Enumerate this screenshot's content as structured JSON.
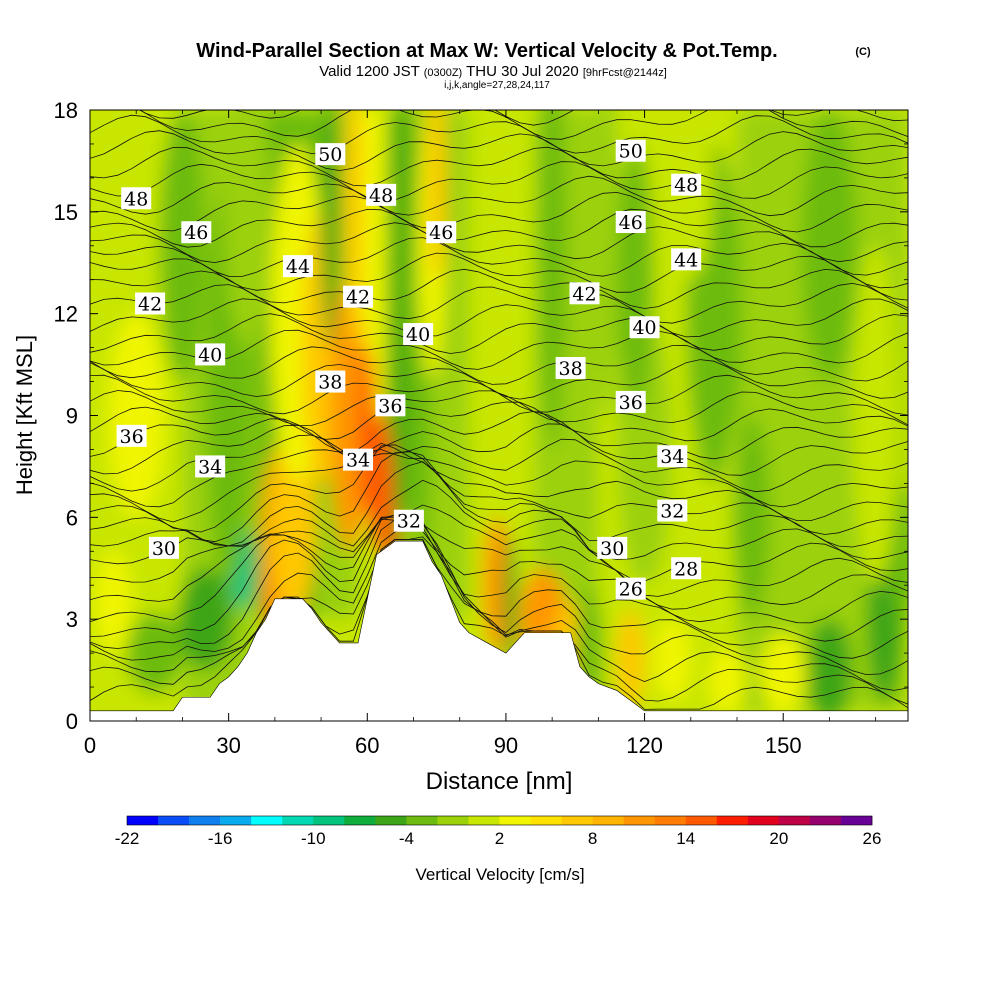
{
  "chart_data": {
    "type": "heatmap",
    "title": "Wind-Parallel Section at Max W: Vertical Velocity & Pot.Temp.",
    "title_mark": "(C)",
    "subtitle": {
      "valid": "Valid 1200 JST",
      "utc": "(0300Z)",
      "date": "THU 30 Jul 2020",
      "forecast": "[9hrFcst@2144z]"
    },
    "grid_indices": "i,j,k,angle=27,28,24,117",
    "xlabel": "Distance [nm]",
    "ylabel": "Height [Kft MSL]",
    "xlim": [
      0,
      177
    ],
    "ylim": [
      0,
      18
    ],
    "x_ticks": [
      "0",
      "30",
      "60",
      "90",
      "120",
      "150"
    ],
    "y_ticks": [
      "0",
      "3",
      "6",
      "9",
      "12",
      "15",
      "18"
    ],
    "colorbar": {
      "label": "Vertical Velocity [cm/s]",
      "tick_labels": [
        "-22",
        "-16",
        "-10",
        "-4",
        "2",
        "8",
        "14",
        "20",
        "26"
      ],
      "range": [
        -22,
        26
      ],
      "colors": [
        "#0000ff",
        "#0a4cf7",
        "#0f7ff0",
        "#0aaaee",
        "#00ffff",
        "#00d8b3",
        "#00c47d",
        "#0fae3c",
        "#3da518",
        "#6cbb0e",
        "#9bd108",
        "#c8e600",
        "#f0f500",
        "#ffe100",
        "#ffc800",
        "#ffb400",
        "#ff9600",
        "#ff7d00",
        "#ff5a00",
        "#ff1e00",
        "#e1001e",
        "#be0046",
        "#96006e",
        "#690096"
      ]
    },
    "contour_field": "Potential Temperature",
    "contour_labels": [
      {
        "text": "48",
        "x": 10,
        "y": 15.4
      },
      {
        "text": "46",
        "x": 23,
        "y": 14.4
      },
      {
        "text": "44",
        "x": 45,
        "y": 13.4
      },
      {
        "text": "42",
        "x": 13,
        "y": 12.3
      },
      {
        "text": "40",
        "x": 26,
        "y": 10.8
      },
      {
        "text": "38",
        "x": 52,
        "y": 10.0
      },
      {
        "text": "36",
        "x": 9,
        "y": 8.4
      },
      {
        "text": "34",
        "x": 26,
        "y": 7.5
      },
      {
        "text": "30",
        "x": 16,
        "y": 5.1
      },
      {
        "text": "50",
        "x": 52,
        "y": 16.7
      },
      {
        "text": "48",
        "x": 63,
        "y": 15.5
      },
      {
        "text": "46",
        "x": 76,
        "y": 14.4
      },
      {
        "text": "42",
        "x": 58,
        "y": 12.5
      },
      {
        "text": "40",
        "x": 71,
        "y": 11.4
      },
      {
        "text": "36",
        "x": 65,
        "y": 9.3
      },
      {
        "text": "34",
        "x": 58,
        "y": 7.7
      },
      {
        "text": "32",
        "x": 69,
        "y": 5.9
      },
      {
        "text": "50",
        "x": 117,
        "y": 16.8
      },
      {
        "text": "48",
        "x": 129,
        "y": 15.8
      },
      {
        "text": "46",
        "x": 117,
        "y": 14.7
      },
      {
        "text": "44",
        "x": 129,
        "y": 13.6
      },
      {
        "text": "42",
        "x": 107,
        "y": 12.6
      },
      {
        "text": "40",
        "x": 120,
        "y": 11.6
      },
      {
        "text": "38",
        "x": 104,
        "y": 10.4
      },
      {
        "text": "36",
        "x": 117,
        "y": 9.4
      },
      {
        "text": "34",
        "x": 126,
        "y": 7.8
      },
      {
        "text": "32",
        "x": 126,
        "y": 6.2
      },
      {
        "text": "30",
        "x": 113,
        "y": 5.1
      },
      {
        "text": "28",
        "x": 129,
        "y": 4.5
      },
      {
        "text": "26",
        "x": 117,
        "y": 3.9
      }
    ],
    "terrain": [
      [
        0,
        0.3
      ],
      [
        18,
        0.3
      ],
      [
        20,
        0.7
      ],
      [
        26,
        0.7
      ],
      [
        28,
        1.1
      ],
      [
        30,
        1.3
      ],
      [
        32,
        1.6
      ],
      [
        34,
        2.0
      ],
      [
        36,
        2.6
      ],
      [
        38,
        3.0
      ],
      [
        40,
        3.6
      ],
      [
        46,
        3.6
      ],
      [
        48,
        3.3
      ],
      [
        50,
        2.9
      ],
      [
        52,
        2.6
      ],
      [
        54,
        2.3
      ],
      [
        58,
        2.3
      ],
      [
        60,
        3.6
      ],
      [
        62,
        4.9
      ],
      [
        66,
        5.3
      ],
      [
        72,
        5.3
      ],
      [
        74,
        4.7
      ],
      [
        76,
        4.3
      ],
      [
        78,
        3.6
      ],
      [
        80,
        2.9
      ],
      [
        82,
        2.6
      ],
      [
        86,
        2.3
      ],
      [
        90,
        2.0
      ],
      [
        92,
        2.3
      ],
      [
        94,
        2.6
      ],
      [
        104,
        2.6
      ],
      [
        106,
        1.6
      ],
      [
        108,
        1.3
      ],
      [
        110,
        1.1
      ],
      [
        112,
        1.0
      ],
      [
        114,
        0.9
      ],
      [
        116,
        0.7
      ],
      [
        118,
        0.5
      ],
      [
        120,
        0.3
      ],
      [
        177,
        0.3
      ]
    ]
  }
}
